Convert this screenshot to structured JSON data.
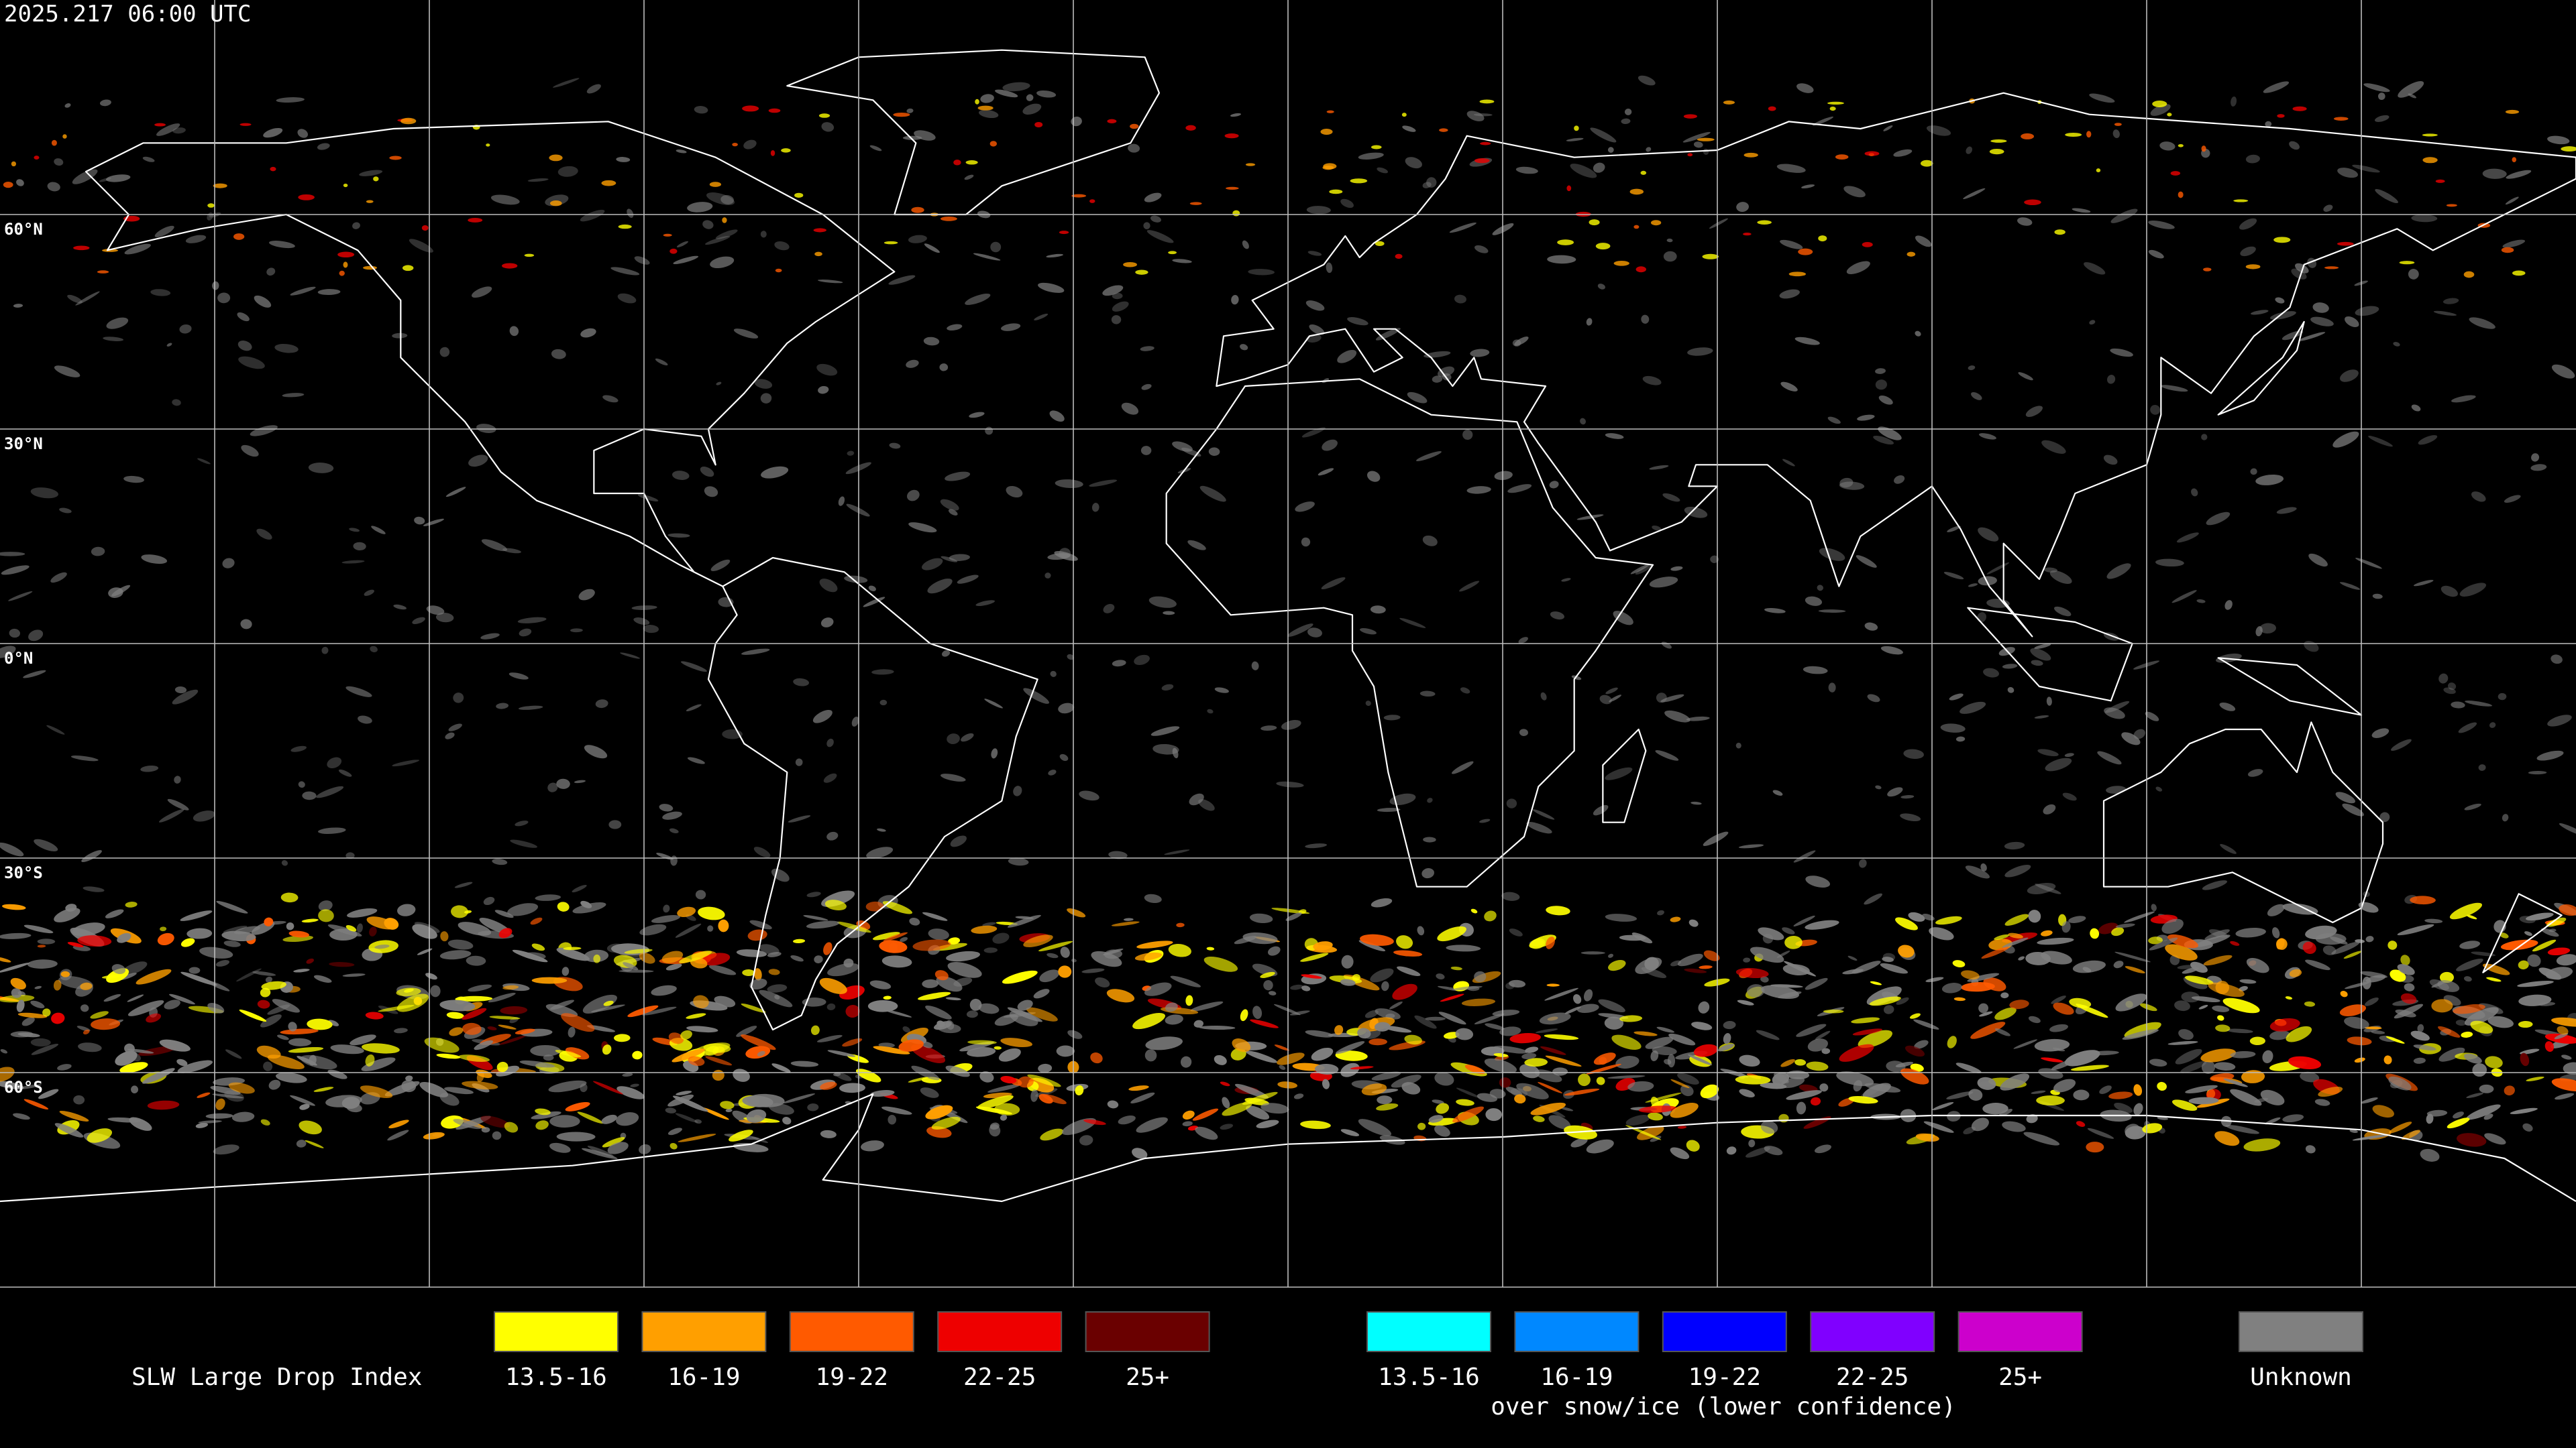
{
  "header": {
    "timestamp": "2025.217 06:00 UTC"
  },
  "map": {
    "latitude_labels": [
      "60°N",
      "30°N",
      "0°N",
      "30°S",
      "60°S"
    ]
  },
  "legend": {
    "title": "SLW Large Drop Index",
    "primary": [
      {
        "label": "13.5-16",
        "color": "#ffff00"
      },
      {
        "label": "16-19",
        "color": "#ff9f00"
      },
      {
        "label": "19-22",
        "color": "#ff5a00"
      },
      {
        "label": "22-25",
        "color": "#ee0000"
      },
      {
        "label": "25+",
        "color": "#6a0000"
      }
    ],
    "snow_ice": {
      "items": [
        {
          "label": "13.5-16",
          "color": "#00ffff"
        },
        {
          "label": "16-19",
          "color": "#0088ff"
        },
        {
          "label": "19-22",
          "color": "#0000ff"
        },
        {
          "label": "22-25",
          "color": "#8000ff"
        },
        {
          "label": "25+",
          "color": "#cc00cc"
        }
      ],
      "caption": "over snow/ice (lower confidence)"
    },
    "unknown": {
      "label": "Unknown",
      "color": "#808080"
    }
  }
}
